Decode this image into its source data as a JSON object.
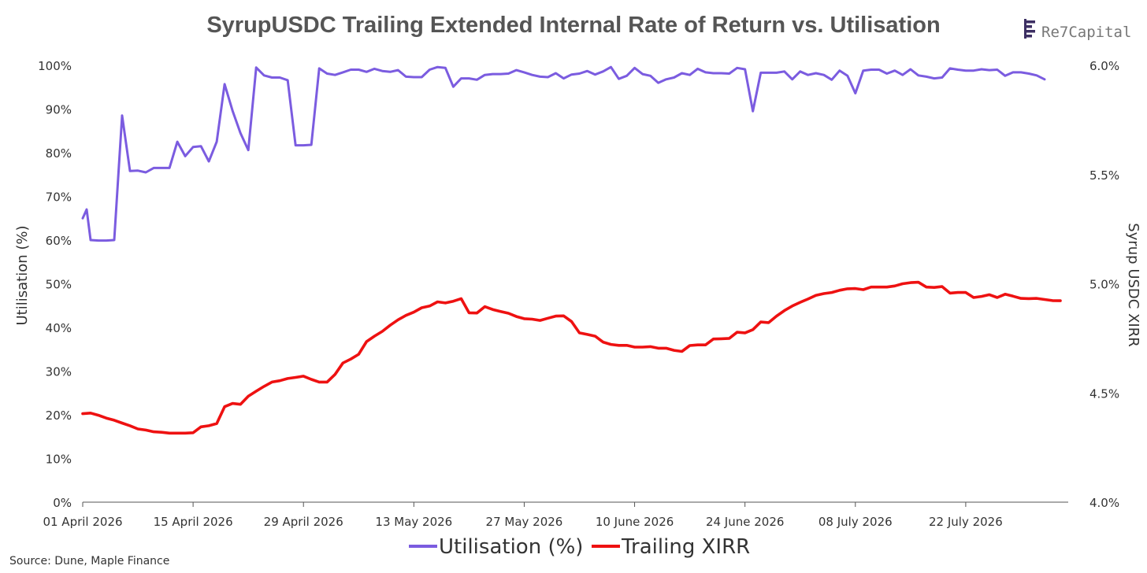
{
  "brand": {
    "name": "Re7Capital",
    "mark_color": "#3d2f63"
  },
  "source": "Source: Dune, Maple Finance",
  "chart_data": {
    "type": "line",
    "title": "SyrupUSDC Trailing Extended Internal Rate of Return vs. Utilisation",
    "ylabel": "Utilisation  (%)",
    "ylabel_right": "Syrup USDC XIRR",
    "ylim": [
      0,
      100
    ],
    "ylim_right": [
      4.0,
      6.0
    ],
    "y_ticks": [
      "0%",
      "10%",
      "20%",
      "30%",
      "40%",
      "50%",
      "60%",
      "70%",
      "80%",
      "90%",
      "100%"
    ],
    "y_right_ticks": [
      "4.0%",
      "4.5%",
      "5.0%",
      "5.5%",
      "6.0%"
    ],
    "x_ticks": [
      "01 April 2026",
      "15 April 2026",
      "29 April 2026",
      "13 May 2026",
      "27 May 2026",
      "10 June 2026",
      "24 June 2026",
      "08 July 2026",
      "22 July 2026"
    ],
    "x_start": "2026-04-01",
    "x_end": "2026-08-04",
    "legend_position": "bottom",
    "grid": false,
    "series": [
      {
        "name": "Utilisation (%)",
        "axis": "left",
        "color": "#7b5ce0",
        "points": [
          [
            "2026-04-01",
            65.0
          ],
          [
            "2026-04-01T12",
            67.0
          ],
          [
            "2026-04-02",
            60.0
          ],
          [
            "2026-04-03",
            59.9
          ],
          [
            "2026-04-04",
            59.9
          ],
          [
            "2026-04-05",
            60.0
          ],
          [
            "2026-04-06",
            88.5
          ],
          [
            "2026-04-07",
            75.8
          ],
          [
            "2026-04-08",
            75.9
          ],
          [
            "2026-04-09",
            75.5
          ],
          [
            "2026-04-10",
            76.5
          ],
          [
            "2026-04-11",
            76.5
          ],
          [
            "2026-04-12",
            76.5
          ],
          [
            "2026-04-13",
            82.5
          ],
          [
            "2026-04-14",
            79.2
          ],
          [
            "2026-04-15",
            81.3
          ],
          [
            "2026-04-16",
            81.5
          ],
          [
            "2026-04-17",
            78.0
          ],
          [
            "2026-04-18",
            82.5
          ],
          [
            "2026-04-19",
            95.7
          ],
          [
            "2026-04-20",
            89.6
          ],
          [
            "2026-04-21",
            84.5
          ],
          [
            "2026-04-22",
            80.6
          ],
          [
            "2026-04-23",
            99.5
          ],
          [
            "2026-04-24",
            97.7
          ],
          [
            "2026-04-25",
            97.2
          ],
          [
            "2026-04-26",
            97.2
          ],
          [
            "2026-04-27",
            96.6
          ],
          [
            "2026-04-28",
            81.7
          ],
          [
            "2026-04-29",
            81.7
          ],
          [
            "2026-04-30",
            81.8
          ],
          [
            "2026-05-01",
            99.3
          ],
          [
            "2026-05-02",
            98.1
          ],
          [
            "2026-05-03",
            97.8
          ],
          [
            "2026-05-04",
            98.4
          ],
          [
            "2026-05-05",
            99.0
          ],
          [
            "2026-05-06",
            99.0
          ],
          [
            "2026-05-07",
            98.5
          ],
          [
            "2026-05-08",
            99.2
          ],
          [
            "2026-05-09",
            98.7
          ],
          [
            "2026-05-10",
            98.5
          ],
          [
            "2026-05-11",
            98.9
          ],
          [
            "2026-05-12",
            97.4
          ],
          [
            "2026-05-13",
            97.3
          ],
          [
            "2026-05-14",
            97.3
          ],
          [
            "2026-05-15",
            99.0
          ],
          [
            "2026-05-16",
            99.6
          ],
          [
            "2026-05-17",
            99.4
          ],
          [
            "2026-05-18",
            95.1
          ],
          [
            "2026-05-19",
            97.0
          ],
          [
            "2026-05-20",
            97.0
          ],
          [
            "2026-05-21",
            96.7
          ],
          [
            "2026-05-22",
            97.8
          ],
          [
            "2026-05-23",
            98.0
          ],
          [
            "2026-05-24",
            98.0
          ],
          [
            "2026-05-25",
            98.1
          ],
          [
            "2026-05-26",
            98.9
          ],
          [
            "2026-05-27",
            98.4
          ],
          [
            "2026-05-28",
            97.8
          ],
          [
            "2026-05-29",
            97.4
          ],
          [
            "2026-05-30",
            97.3
          ],
          [
            "2026-05-31",
            98.2
          ],
          [
            "2026-06-01",
            97.0
          ],
          [
            "2026-06-02",
            97.9
          ],
          [
            "2026-06-03",
            98.1
          ],
          [
            "2026-06-04",
            98.7
          ],
          [
            "2026-06-05",
            97.9
          ],
          [
            "2026-06-06",
            98.6
          ],
          [
            "2026-06-07",
            99.6
          ],
          [
            "2026-06-08",
            96.9
          ],
          [
            "2026-06-09",
            97.6
          ],
          [
            "2026-06-10",
            99.4
          ],
          [
            "2026-06-11",
            98.0
          ],
          [
            "2026-06-12",
            97.6
          ],
          [
            "2026-06-13",
            96.0
          ],
          [
            "2026-06-14",
            96.8
          ],
          [
            "2026-06-15",
            97.2
          ],
          [
            "2026-06-16",
            98.2
          ],
          [
            "2026-06-17",
            97.8
          ],
          [
            "2026-06-18",
            99.2
          ],
          [
            "2026-06-19",
            98.4
          ],
          [
            "2026-06-20",
            98.2
          ],
          [
            "2026-06-21",
            98.2
          ],
          [
            "2026-06-22",
            98.1
          ],
          [
            "2026-06-23",
            99.4
          ],
          [
            "2026-06-24",
            99.1
          ],
          [
            "2026-06-25",
            89.5
          ],
          [
            "2026-06-26",
            98.3
          ],
          [
            "2026-06-27",
            98.3
          ],
          [
            "2026-06-28",
            98.3
          ],
          [
            "2026-06-29",
            98.6
          ],
          [
            "2026-06-30",
            96.8
          ],
          [
            "2026-07-01",
            98.6
          ],
          [
            "2026-07-02",
            97.8
          ],
          [
            "2026-07-03",
            98.2
          ],
          [
            "2026-07-04",
            97.8
          ],
          [
            "2026-07-05",
            96.7
          ],
          [
            "2026-07-06",
            98.8
          ],
          [
            "2026-07-07",
            97.6
          ],
          [
            "2026-07-08",
            93.6
          ],
          [
            "2026-07-09",
            98.8
          ],
          [
            "2026-07-10",
            99.0
          ],
          [
            "2026-07-11",
            99.0
          ],
          [
            "2026-07-12",
            98.1
          ],
          [
            "2026-07-13",
            98.8
          ],
          [
            "2026-07-14",
            97.8
          ],
          [
            "2026-07-15",
            99.1
          ],
          [
            "2026-07-16",
            97.7
          ],
          [
            "2026-07-17",
            97.4
          ],
          [
            "2026-07-18",
            97.0
          ],
          [
            "2026-07-19",
            97.2
          ],
          [
            "2026-07-20",
            99.3
          ],
          [
            "2026-07-21",
            99.0
          ],
          [
            "2026-07-22",
            98.8
          ],
          [
            "2026-07-23",
            98.8
          ],
          [
            "2026-07-24",
            99.1
          ],
          [
            "2026-07-25",
            98.9
          ],
          [
            "2026-07-26",
            99.0
          ],
          [
            "2026-07-27",
            97.6
          ],
          [
            "2026-07-28",
            98.4
          ],
          [
            "2026-07-29",
            98.4
          ],
          [
            "2026-07-30",
            98.1
          ],
          [
            "2026-07-31",
            97.7
          ],
          [
            "2026-08-01",
            96.8
          ]
        ]
      },
      {
        "name": "Trailing XIRR",
        "axis": "right",
        "color": "#ee1111",
        "points": [
          [
            "2026-04-01",
            4.405
          ],
          [
            "2026-04-02",
            4.408
          ],
          [
            "2026-04-03",
            4.398
          ],
          [
            "2026-04-04",
            4.385
          ],
          [
            "2026-04-05",
            4.375
          ],
          [
            "2026-04-06",
            4.362
          ],
          [
            "2026-04-07",
            4.35
          ],
          [
            "2026-04-08",
            4.335
          ],
          [
            "2026-04-09",
            4.33
          ],
          [
            "2026-04-10",
            4.322
          ],
          [
            "2026-04-11",
            4.32
          ],
          [
            "2026-04-12",
            4.316
          ],
          [
            "2026-04-13",
            4.316
          ],
          [
            "2026-04-14",
            4.316
          ],
          [
            "2026-04-15",
            4.318
          ],
          [
            "2026-04-16",
            4.345
          ],
          [
            "2026-04-17",
            4.35
          ],
          [
            "2026-04-18",
            4.36
          ],
          [
            "2026-04-19",
            4.437
          ],
          [
            "2026-04-20",
            4.452
          ],
          [
            "2026-04-21",
            4.448
          ],
          [
            "2026-04-22",
            4.485
          ],
          [
            "2026-04-23",
            4.508
          ],
          [
            "2026-04-24",
            4.53
          ],
          [
            "2026-04-25",
            4.55
          ],
          [
            "2026-04-26",
            4.556
          ],
          [
            "2026-04-27",
            4.566
          ],
          [
            "2026-04-28",
            4.571
          ],
          [
            "2026-04-29",
            4.577
          ],
          [
            "2026-04-30",
            4.562
          ],
          [
            "2026-05-01",
            4.55
          ],
          [
            "2026-05-02",
            4.55
          ],
          [
            "2026-05-03",
            4.585
          ],
          [
            "2026-05-04",
            4.637
          ],
          [
            "2026-05-05",
            4.655
          ],
          [
            "2026-05-06",
            4.677
          ],
          [
            "2026-05-07",
            4.735
          ],
          [
            "2026-05-08",
            4.76
          ],
          [
            "2026-05-09",
            4.782
          ],
          [
            "2026-05-10",
            4.81
          ],
          [
            "2026-05-11",
            4.835
          ],
          [
            "2026-05-12",
            4.855
          ],
          [
            "2026-05-13",
            4.87
          ],
          [
            "2026-05-14",
            4.89
          ],
          [
            "2026-05-15",
            4.898
          ],
          [
            "2026-05-16",
            4.917
          ],
          [
            "2026-05-17",
            4.912
          ],
          [
            "2026-05-18",
            4.92
          ],
          [
            "2026-05-19",
            4.932
          ],
          [
            "2026-05-20",
            4.867
          ],
          [
            "2026-05-21",
            4.866
          ],
          [
            "2026-05-22",
            4.895
          ],
          [
            "2026-05-23",
            4.882
          ],
          [
            "2026-05-24",
            4.873
          ],
          [
            "2026-05-25",
            4.865
          ],
          [
            "2026-05-26",
            4.85
          ],
          [
            "2026-05-27",
            4.84
          ],
          [
            "2026-05-28",
            4.838
          ],
          [
            "2026-05-29",
            4.832
          ],
          [
            "2026-05-30",
            4.842
          ],
          [
            "2026-05-31",
            4.852
          ],
          [
            "2026-06-01",
            4.853
          ],
          [
            "2026-06-02",
            4.827
          ],
          [
            "2026-06-03",
            4.775
          ],
          [
            "2026-06-04",
            4.768
          ],
          [
            "2026-06-05",
            4.76
          ],
          [
            "2026-06-06",
            4.733
          ],
          [
            "2026-06-07",
            4.722
          ],
          [
            "2026-06-08",
            4.718
          ],
          [
            "2026-06-09",
            4.718
          ],
          [
            "2026-06-10",
            4.71
          ],
          [
            "2026-06-11",
            4.71
          ],
          [
            "2026-06-12",
            4.712
          ],
          [
            "2026-06-13",
            4.705
          ],
          [
            "2026-06-14",
            4.705
          ],
          [
            "2026-06-15",
            4.695
          ],
          [
            "2026-06-16",
            4.69
          ],
          [
            "2026-06-17",
            4.717
          ],
          [
            "2026-06-18",
            4.72
          ],
          [
            "2026-06-19",
            4.72
          ],
          [
            "2026-06-20",
            4.747
          ],
          [
            "2026-06-21",
            4.748
          ],
          [
            "2026-06-22",
            4.75
          ],
          [
            "2026-06-23",
            4.778
          ],
          [
            "2026-06-24",
            4.775
          ],
          [
            "2026-06-25",
            4.79
          ],
          [
            "2026-06-26",
            4.825
          ],
          [
            "2026-06-27",
            4.822
          ],
          [
            "2026-06-28",
            4.852
          ],
          [
            "2026-06-29",
            4.877
          ],
          [
            "2026-06-30",
            4.898
          ],
          [
            "2026-07-01",
            4.915
          ],
          [
            "2026-07-02",
            4.93
          ],
          [
            "2026-07-03",
            4.947
          ],
          [
            "2026-07-04",
            4.955
          ],
          [
            "2026-07-05",
            4.96
          ],
          [
            "2026-07-06",
            4.97
          ],
          [
            "2026-07-07",
            4.977
          ],
          [
            "2026-07-08",
            4.978
          ],
          [
            "2026-07-09",
            4.973
          ],
          [
            "2026-07-10",
            4.985
          ],
          [
            "2026-07-11",
            4.985
          ],
          [
            "2026-07-12",
            4.985
          ],
          [
            "2026-07-13",
            4.99
          ],
          [
            "2026-07-14",
            5.0
          ],
          [
            "2026-07-15",
            5.005
          ],
          [
            "2026-07-16",
            5.007
          ],
          [
            "2026-07-17",
            4.985
          ],
          [
            "2026-07-18",
            4.983
          ],
          [
            "2026-07-19",
            4.987
          ],
          [
            "2026-07-20",
            4.957
          ],
          [
            "2026-07-21",
            4.96
          ],
          [
            "2026-07-22",
            4.96
          ],
          [
            "2026-07-23",
            4.937
          ],
          [
            "2026-07-24",
            4.942
          ],
          [
            "2026-07-25",
            4.95
          ],
          [
            "2026-07-26",
            4.937
          ],
          [
            "2026-07-27",
            4.952
          ],
          [
            "2026-07-28",
            4.943
          ],
          [
            "2026-07-29",
            4.933
          ],
          [
            "2026-07-30",
            4.932
          ],
          [
            "2026-07-31",
            4.933
          ],
          [
            "2026-08-01",
            4.928
          ],
          [
            "2026-08-02",
            4.923
          ],
          [
            "2026-08-03",
            4.922
          ]
        ]
      }
    ]
  }
}
